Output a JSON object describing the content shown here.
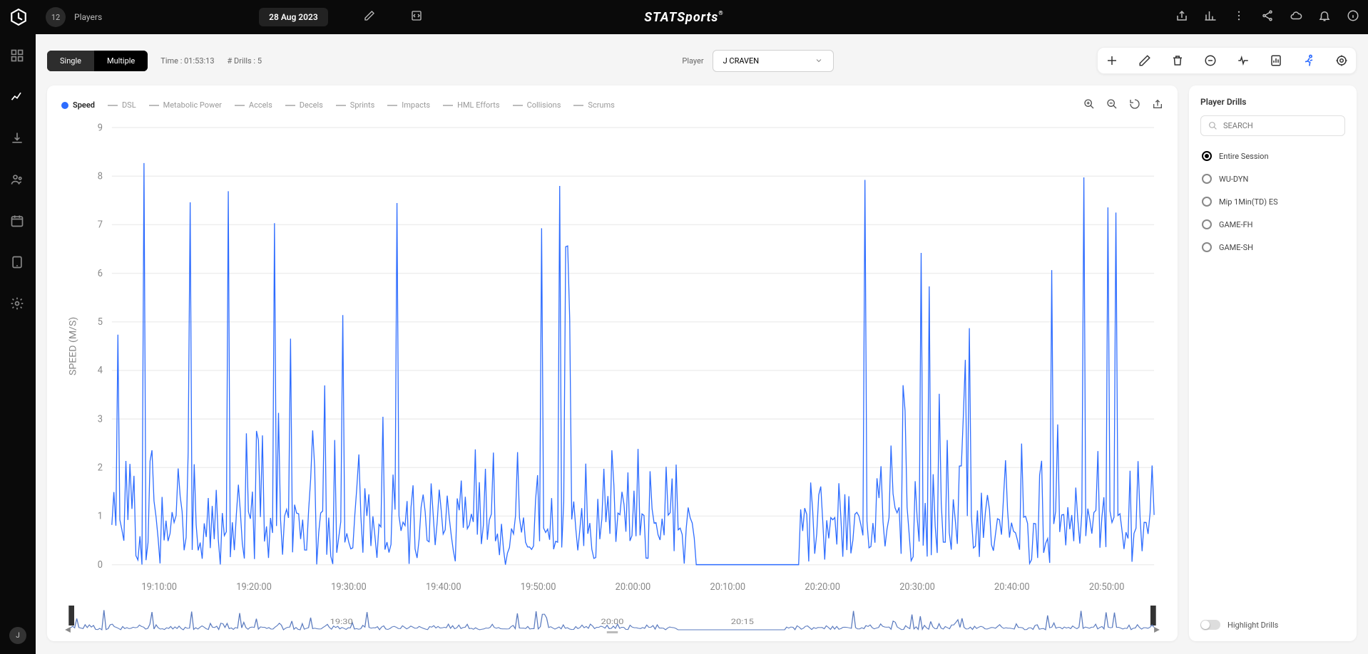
{
  "topbar": {
    "player_count": "12",
    "players_label": "Players",
    "date": "28 Aug 2023",
    "brand": "STATSports",
    "brand_mark": "®"
  },
  "sidebar": {
    "avatar_initial": "J"
  },
  "controls": {
    "toggle": {
      "single": "Single",
      "multiple": "Multiple",
      "active": "single"
    },
    "time_label": "Time : 01:53:13",
    "drills_label": "# Drills : 5",
    "player_label": "Player",
    "player_selected": "J CRAVEN"
  },
  "chart": {
    "type": "line",
    "active_series": "Speed",
    "series_labels": [
      "Speed",
      "DSL",
      "Metabolic Power",
      "Accels",
      "Decels",
      "Sprints",
      "Impacts",
      "HML Efforts",
      "Collisions",
      "Scrums"
    ],
    "y": {
      "label": "SPEED (M/S)",
      "min": 0,
      "max": 9,
      "ticks": [
        0,
        1,
        2,
        3,
        4,
        5,
        6,
        7,
        8,
        9
      ]
    },
    "x": {
      "min": "19:05:00",
      "max": "20:58:00",
      "ticks": [
        "19:10:00",
        "19:20:00",
        "19:30:00",
        "19:40:00",
        "19:50:00",
        "20:00:00",
        "20:10:00",
        "20:20:00",
        "20:30:00",
        "20:40:00",
        "20:50:00"
      ]
    },
    "mini_ticks": [
      "19:30",
      "20:00",
      "20:15"
    ],
    "series_color": "#2d6cff",
    "grid_color": "#eeeeee",
    "background": "#ffffff",
    "gap": {
      "start": 0.56,
      "end": 0.66
    },
    "speed_samples": 520
  },
  "drills": {
    "title": "Player Drills",
    "search_placeholder": "SEARCH",
    "options": [
      "Entire Session",
      "WU-DYN",
      "Mip 1Min(TD) ES",
      "GAME-FH",
      "GAME-SH"
    ],
    "selected": "Entire Session",
    "highlight_label": "Highlight Drills"
  }
}
